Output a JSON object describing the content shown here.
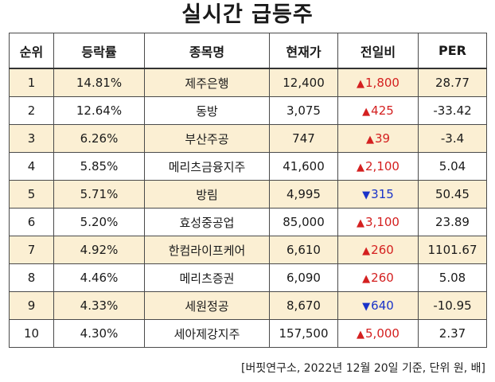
{
  "title": "실시간 급등주",
  "headers": [
    "순위",
    "등락률",
    "종목명",
    "현재가",
    "전일비",
    "PER"
  ],
  "rows": [
    {
      "rank": "1",
      "rate": "14.81%",
      "name": "제주은행",
      "price": "12,400",
      "dir": "up",
      "change": "1,800",
      "per": "28.77"
    },
    {
      "rank": "2",
      "rate": "12.64%",
      "name": "동방",
      "price": "3,075",
      "dir": "up",
      "change": "425",
      "per": "-33.42"
    },
    {
      "rank": "3",
      "rate": "6.26%",
      "name": "부산주공",
      "price": "747",
      "dir": "up",
      "change": "39",
      "per": "-3.4"
    },
    {
      "rank": "4",
      "rate": "5.85%",
      "name": "메리츠금융지주",
      "price": "41,600",
      "dir": "up",
      "change": "2,100",
      "per": "5.04"
    },
    {
      "rank": "5",
      "rate": "5.71%",
      "name": "방림",
      "price": "4,995",
      "dir": "down",
      "change": "315",
      "per": "50.45"
    },
    {
      "rank": "6",
      "rate": "5.20%",
      "name": "효성중공업",
      "price": "85,000",
      "dir": "up",
      "change": "3,100",
      "per": "23.89"
    },
    {
      "rank": "7",
      "rate": "4.92%",
      "name": "한컴라이프케어",
      "price": "6,610",
      "dir": "up",
      "change": "260",
      "per": "1101.67"
    },
    {
      "rank": "8",
      "rate": "4.46%",
      "name": "메리츠증권",
      "price": "6,090",
      "dir": "up",
      "change": "260",
      "per": "5.08"
    },
    {
      "rank": "9",
      "rate": "4.33%",
      "name": "세원정공",
      "price": "8,670",
      "dir": "down",
      "change": "640",
      "per": "-10.95"
    },
    {
      "rank": "10",
      "rate": "4.30%",
      "name": "세아제강지주",
      "price": "157,500",
      "dir": "up",
      "change": "5,000",
      "per": "2.37"
    }
  ],
  "footnote": "[버핏연구소, 2022년 12월 20일 기준, 단위 원, 배]",
  "colors": {
    "up": "#d42020",
    "down": "#1a33c9",
    "row_highlight": "#fbefd3"
  },
  "icons": {
    "up": "triangle-up-icon",
    "down": "triangle-down-icon"
  }
}
